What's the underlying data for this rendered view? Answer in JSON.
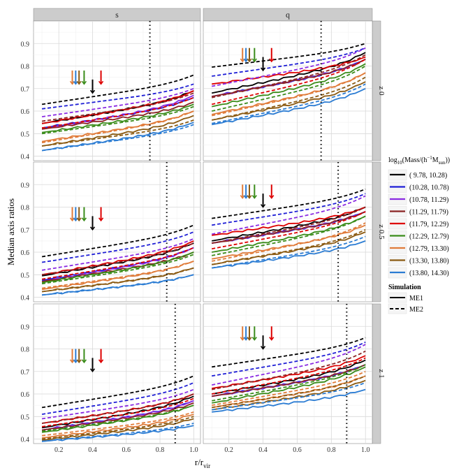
{
  "chart_data": {
    "type": "line",
    "xlabel_main": "r/r",
    "xlabel_sub": "vir",
    "ylabel": "Median axis ratios",
    "xlim": [
      0.05,
      1.04
    ],
    "ylim": [
      0.38,
      1.0
    ],
    "x_ticks": [
      "0.2",
      "0.4",
      "0.6",
      "0.8",
      "1.0"
    ],
    "y_ticks": [
      "0.4",
      "0.5",
      "0.6",
      "0.7",
      "0.8",
      "0.9"
    ],
    "columns": [
      "s",
      "q"
    ],
    "rows": [
      "z 0",
      "z 0.5",
      "z 1"
    ],
    "grid": true,
    "legend": {
      "mass_title_parts": [
        "log",
        "10",
        "(Mass/(h",
        "−1",
        "M",
        "sun",
        "))"
      ],
      "mass_bins": [
        {
          "label": "( 9.78, 10.28)",
          "color": "#000000"
        },
        {
          "label": "(10.28, 10.78)",
          "color": "#1f1fd6"
        },
        {
          "label": "(10.78, 11.29)",
          "color": "#8a2be2"
        },
        {
          "label": "(11.29, 11.79)",
          "color": "#8b2323"
        },
        {
          "label": "(11.79, 12.29)",
          "color": "#dd0000"
        },
        {
          "label": "(12.29, 12.79)",
          "color": "#3a8c1a"
        },
        {
          "label": "(12.79, 13.30)",
          "color": "#e07b39"
        },
        {
          "label": "(13.30, 13.80)",
          "color": "#8b5a12"
        },
        {
          "label": "(13.80, 14.30)",
          "color": "#2b7cd3"
        }
      ],
      "simulation_title": "Simulation",
      "simulation": [
        {
          "label": "ME1",
          "dash": "solid"
        },
        {
          "label": "ME2",
          "dash": "dashed"
        }
      ]
    },
    "vlines_x": [
      [
        0.74,
        0.74
      ],
      [
        0.84,
        0.84
      ],
      [
        0.89,
        0.89
      ]
    ],
    "arrows_x": [
      0.28,
      0.3,
      0.32,
      0.35,
      0.4,
      0.45
    ],
    "panels": [
      {
        "row": 0,
        "col": 0,
        "ME1": [
          [
            0.545,
            0.69
          ],
          [
            0.525,
            0.66
          ],
          [
            0.52,
            0.67
          ],
          [
            0.52,
            0.64
          ],
          [
            0.545,
            0.69
          ],
          [
            0.505,
            0.63
          ],
          [
            0.465,
            0.6
          ],
          [
            0.445,
            0.58
          ],
          [
            0.425,
            0.55
          ]
        ],
        "ME2": [
          [
            0.63,
            0.76
          ],
          [
            0.61,
            0.72
          ],
          [
            0.575,
            0.7
          ],
          [
            0.555,
            0.68
          ],
          [
            0.525,
            0.66
          ],
          [
            0.5,
            0.62
          ],
          [
            0.46,
            0.6
          ],
          [
            0.445,
            0.56
          ],
          [
            0.425,
            0.54
          ]
        ]
      },
      {
        "row": 0,
        "col": 1,
        "ME1": [
          [
            0.68,
            0.86
          ],
          [
            0.665,
            0.83
          ],
          [
            0.665,
            0.83
          ],
          [
            0.665,
            0.83
          ],
          [
            0.72,
            0.84
          ],
          [
            0.62,
            0.81
          ],
          [
            0.585,
            0.77
          ],
          [
            0.56,
            0.73
          ],
          [
            0.54,
            0.7
          ]
        ],
        "ME2": [
          [
            0.795,
            0.9
          ],
          [
            0.755,
            0.88
          ],
          [
            0.71,
            0.88
          ],
          [
            0.66,
            0.85
          ],
          [
            0.63,
            0.83
          ],
          [
            0.6,
            0.8
          ],
          [
            0.58,
            0.77
          ],
          [
            0.56,
            0.75
          ],
          [
            0.545,
            0.72
          ]
        ]
      },
      {
        "row": 1,
        "col": 0,
        "ME1": [
          [
            0.495,
            0.64
          ],
          [
            0.475,
            0.62
          ],
          [
            0.47,
            0.62
          ],
          [
            0.47,
            0.6
          ],
          [
            0.5,
            0.65
          ],
          [
            0.465,
            0.6
          ],
          [
            0.435,
            0.56
          ],
          [
            0.425,
            0.53
          ],
          [
            0.41,
            0.5
          ]
        ],
        "ME2": [
          [
            0.58,
            0.72
          ],
          [
            0.555,
            0.69
          ],
          [
            0.52,
            0.66
          ],
          [
            0.5,
            0.64
          ],
          [
            0.48,
            0.62
          ],
          [
            0.46,
            0.59
          ],
          [
            0.44,
            0.56
          ],
          [
            0.425,
            0.53
          ],
          [
            0.41,
            0.5
          ]
        ]
      },
      {
        "row": 1,
        "col": 1,
        "ME1": [
          [
            0.65,
            0.8
          ],
          [
            0.64,
            0.78
          ],
          [
            0.64,
            0.78
          ],
          [
            0.64,
            0.78
          ],
          [
            0.675,
            0.8
          ],
          [
            0.6,
            0.76
          ],
          [
            0.57,
            0.72
          ],
          [
            0.545,
            0.69
          ],
          [
            0.53,
            0.65
          ]
        ],
        "ME2": [
          [
            0.75,
            0.88
          ],
          [
            0.72,
            0.86
          ],
          [
            0.68,
            0.85
          ],
          [
            0.64,
            0.8
          ],
          [
            0.615,
            0.78
          ],
          [
            0.585,
            0.76
          ],
          [
            0.56,
            0.73
          ],
          [
            0.545,
            0.7
          ],
          [
            0.53,
            0.67
          ]
        ]
      },
      {
        "row": 2,
        "col": 0,
        "ME1": [
          [
            0.45,
            0.59
          ],
          [
            0.44,
            0.57
          ],
          [
            0.44,
            0.57
          ],
          [
            0.44,
            0.56
          ],
          [
            0.47,
            0.6
          ],
          [
            0.43,
            0.55
          ],
          [
            0.405,
            0.51
          ],
          [
            0.395,
            0.49
          ],
          [
            0.39,
            0.46
          ]
        ],
        "ME2": [
          [
            0.54,
            0.68
          ],
          [
            0.51,
            0.65
          ],
          [
            0.49,
            0.62
          ],
          [
            0.47,
            0.6
          ],
          [
            0.455,
            0.58
          ],
          [
            0.435,
            0.55
          ],
          [
            0.415,
            0.52
          ],
          [
            0.4,
            0.5
          ],
          [
            0.39,
            0.47
          ]
        ]
      },
      {
        "row": 2,
        "col": 1,
        "ME1": [
          [
            0.6,
            0.75
          ],
          [
            0.59,
            0.73
          ],
          [
            0.59,
            0.73
          ],
          [
            0.59,
            0.73
          ],
          [
            0.625,
            0.77
          ],
          [
            0.56,
            0.72
          ],
          [
            0.54,
            0.68
          ],
          [
            0.53,
            0.66
          ],
          [
            0.52,
            0.62
          ]
        ],
        "ME2": [
          [
            0.72,
            0.85
          ],
          [
            0.68,
            0.83
          ],
          [
            0.64,
            0.82
          ],
          [
            0.62,
            0.79
          ],
          [
            0.6,
            0.76
          ],
          [
            0.57,
            0.73
          ],
          [
            0.55,
            0.7
          ],
          [
            0.54,
            0.68
          ],
          [
            0.53,
            0.65
          ]
        ]
      }
    ]
  }
}
